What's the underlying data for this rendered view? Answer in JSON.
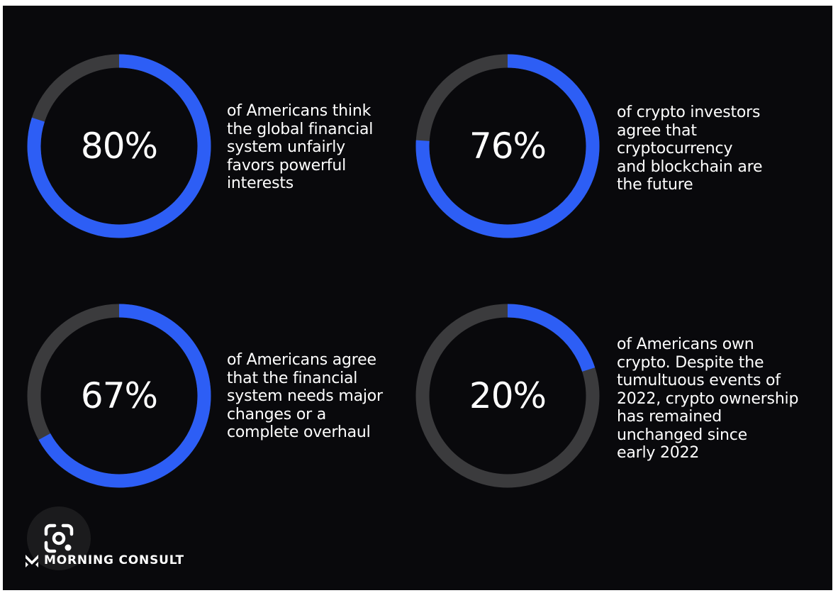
{
  "colors": {
    "background": "#09090c",
    "track": "#3b3b3d",
    "accent": "#2d5ef5",
    "text": "#ffffff"
  },
  "chart_data": [
    {
      "type": "donut",
      "value": 80,
      "label": "80%",
      "caption": "of Americans think\nthe global financial\nsystem unfairly\nfavors powerful\ninterests"
    },
    {
      "type": "donut",
      "value": 76,
      "label": "76%",
      "caption": "of crypto investors\nagree that\ncryptocurrency\nand blockchain are\nthe future"
    },
    {
      "type": "donut",
      "value": 67,
      "label": "67%",
      "caption": "of Americans agree\nthat the financial\nsystem needs major\nchanges or a\ncomplete overhaul"
    },
    {
      "type": "donut",
      "value": 20,
      "label": "20%",
      "caption": "of Americans own\ncrypto. Despite the\ntumultuous events of\n2022, crypto ownership\nhas remained\nunchanged since\nearly 2022"
    }
  ],
  "brand": {
    "name": "MORNING CONSULT"
  },
  "icons": {
    "lens": "google-lens-icon",
    "logo": "morning-consult-logo-icon"
  }
}
